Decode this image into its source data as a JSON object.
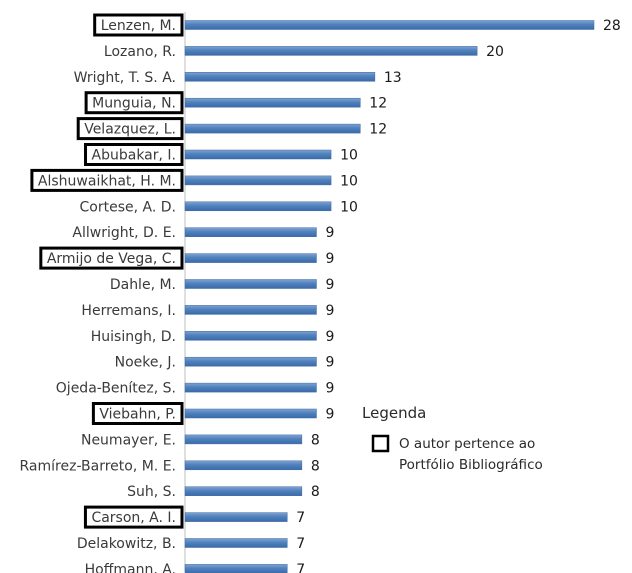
{
  "chart_data": {
    "type": "bar",
    "orientation": "horizontal",
    "categories": [
      "Lenzen, M.",
      "Lozano, R.",
      "Wright, T. S. A.",
      "Munguia, N.",
      "Velazquez, L.",
      "Abubakar, I.",
      "Alshuwaikhat, H. M.",
      "Cortese, A. D.",
      "Allwright, D. E.",
      "Armijo de Vega, C.",
      "Dahle, M.",
      "Herremans, I.",
      "Huisingh, D.",
      "Noeke, J.",
      "Ojeda-Benítez, S.",
      "Viebahn, P.",
      "Neumayer, E.",
      "Ramírez-Barreto, M. E.",
      "Suh, S.",
      "Carson, A. I.",
      "Delakowitz, B.",
      "Hoffmann, A."
    ],
    "values": [
      28,
      20,
      13,
      12,
      12,
      10,
      10,
      10,
      9,
      9,
      9,
      9,
      9,
      9,
      9,
      9,
      8,
      8,
      8,
      7,
      7,
      7
    ],
    "highlighted": [
      true,
      false,
      false,
      true,
      true,
      true,
      true,
      false,
      false,
      true,
      false,
      false,
      false,
      false,
      false,
      true,
      false,
      false,
      false,
      true,
      false,
      false
    ],
    "xlim": [
      0,
      28
    ],
    "bar_color": "#4f81bd",
    "grid": false,
    "legend": {
      "title": "Legenda",
      "line1": "O autor pertence ao",
      "line2": "Portfólio Bibliográfico",
      "placement": "right"
    }
  }
}
